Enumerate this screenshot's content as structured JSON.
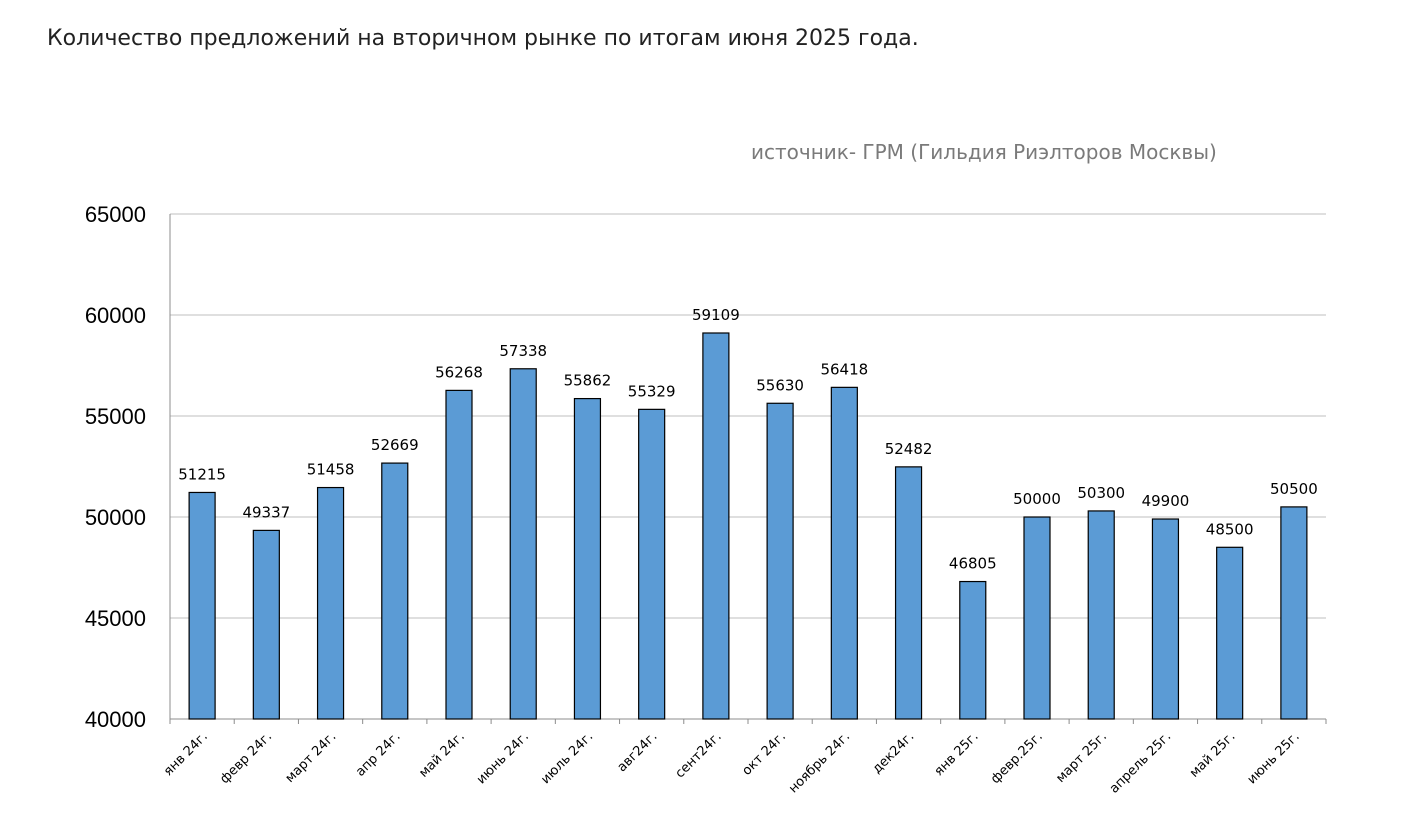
{
  "page": {
    "title": "Количество предложений на вторичном рынке по итогам июня 2025 года.",
    "source": "источник- ГРМ (Гильдия Риэлторов Москвы)"
  },
  "chart_data": {
    "type": "bar",
    "categories": [
      "янв 24г.",
      "февр 24г.",
      "март 24г.",
      "апр 24г.",
      "май 24г.",
      "июнь 24г.",
      "июль 24г.",
      "авг24г.",
      "сент24г.",
      "окт 24г.",
      "ноябрь 24г.",
      "дек24г.",
      "янв 25г.",
      "февр.25г.",
      "март 25г.",
      "апрель 25г.",
      "май 25г.",
      "июнь 25г."
    ],
    "values": [
      51215,
      49337,
      51458,
      52669,
      56268,
      57338,
      55862,
      55329,
      59109,
      55630,
      56418,
      52482,
      46805,
      50000,
      50300,
      49900,
      48500,
      50500
    ],
    "ylim": [
      40000,
      65000
    ],
    "yticks": [
      40000,
      45000,
      50000,
      55000,
      60000,
      65000
    ],
    "grid": true,
    "bar_color": "#5b9bd5",
    "title": "",
    "xlabel": "",
    "ylabel": ""
  }
}
